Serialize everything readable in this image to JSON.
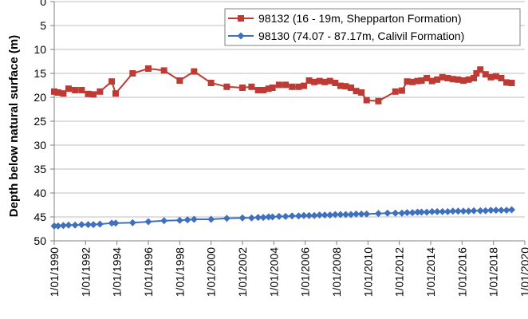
{
  "chart_data": {
    "type": "line",
    "title": "",
    "xlabel": "",
    "ylabel": "Depth below natural surface (m)",
    "y_axis_inverted": true,
    "ylim": [
      0,
      50
    ],
    "y_ticks": [
      0,
      5,
      10,
      15,
      20,
      25,
      30,
      35,
      40,
      45,
      50
    ],
    "xlim": [
      "1/01/1990",
      "1/01/2020"
    ],
    "x_ticks": [
      "1/01/1990",
      "1/01/1992",
      "1/01/1994",
      "1/01/1996",
      "1/01/1998",
      "1/01/2000",
      "1/01/2002",
      "1/01/2004",
      "1/01/2006",
      "1/01/2008",
      "1/01/2010",
      "1/01/2012",
      "1/01/2014",
      "1/01/2016",
      "1/01/2018",
      "1/01/2020"
    ],
    "grid": "horizontal",
    "legend_position": "top-right",
    "series": [
      {
        "name": "98132 (16 - 19m, Shepparton Formation)",
        "color": "#be3a34",
        "marker": "square",
        "points": [
          [
            "1/01/1990",
            18.8
          ],
          [
            "1/04/1990",
            19.0
          ],
          [
            "1/08/1990",
            19.2
          ],
          [
            "1/12/1990",
            18.2
          ],
          [
            "1/05/1991",
            18.5
          ],
          [
            "1/10/1991",
            18.5
          ],
          [
            "1/03/1992",
            19.3
          ],
          [
            "1/07/1992",
            19.4
          ],
          [
            "1/12/1992",
            18.8
          ],
          [
            "1/09/1993",
            16.7
          ],
          [
            "1/12/1993",
            19.2
          ],
          [
            "1/01/1995",
            15.0
          ],
          [
            "1/01/1996",
            14.0
          ],
          [
            "1/01/1997",
            14.4
          ],
          [
            "1/01/1998",
            16.5
          ],
          [
            "1/12/1998",
            14.6
          ],
          [
            "1/01/2000",
            17.0
          ],
          [
            "1/01/2001",
            17.8
          ],
          [
            "1/01/2002",
            18.0
          ],
          [
            "1/08/2002",
            17.8
          ],
          [
            "1/01/2003",
            18.5
          ],
          [
            "1/05/2003",
            18.5
          ],
          [
            "1/09/2003",
            18.2
          ],
          [
            "1/12/2003",
            18.0
          ],
          [
            "1/05/2004",
            17.4
          ],
          [
            "1/10/2004",
            17.4
          ],
          [
            "1/03/2005",
            17.8
          ],
          [
            "1/08/2005",
            17.8
          ],
          [
            "1/12/2005",
            17.6
          ],
          [
            "1/04/2006",
            16.5
          ],
          [
            "1/08/2006",
            16.8
          ],
          [
            "1/12/2006",
            16.6
          ],
          [
            "1/04/2007",
            16.8
          ],
          [
            "1/08/2007",
            16.6
          ],
          [
            "1/12/2007",
            17.0
          ],
          [
            "1/04/2008",
            17.6
          ],
          [
            "1/08/2008",
            17.7
          ],
          [
            "1/12/2008",
            18.0
          ],
          [
            "1/04/2009",
            18.7
          ],
          [
            "1/08/2009",
            19.0
          ],
          [
            "1/12/2009",
            20.6
          ],
          [
            "1/09/2010",
            20.8
          ],
          [
            "1/10/2011",
            18.8
          ],
          [
            "1/03/2012",
            18.6
          ],
          [
            "1/07/2012",
            16.7
          ],
          [
            "1/11/2012",
            16.8
          ],
          [
            "1/03/2013",
            16.6
          ],
          [
            "1/06/2013",
            16.5
          ],
          [
            "1/10/2013",
            16.0
          ],
          [
            "1/02/2014",
            16.6
          ],
          [
            "1/06/2014",
            16.3
          ],
          [
            "1/10/2014",
            15.8
          ],
          [
            "1/02/2015",
            16.0
          ],
          [
            "1/06/2015",
            16.2
          ],
          [
            "1/10/2015",
            16.3
          ],
          [
            "1/02/2016",
            16.5
          ],
          [
            "1/06/2016",
            16.3
          ],
          [
            "1/10/2016",
            16.0
          ],
          [
            "1/12/2016",
            15.0
          ],
          [
            "1/03/2017",
            14.2
          ],
          [
            "1/07/2017",
            15.2
          ],
          [
            "1/11/2017",
            15.8
          ],
          [
            "1/03/2018",
            15.6
          ],
          [
            "1/07/2018",
            16.0
          ],
          [
            "1/11/2018",
            16.9
          ],
          [
            "1/03/2019",
            17.0
          ]
        ]
      },
      {
        "name": "98130 (74.07 - 87.17m, Calivil Formation)",
        "color": "#3f70be",
        "marker": "diamond",
        "points": [
          [
            "1/01/1990",
            46.9
          ],
          [
            "1/04/1990",
            46.9
          ],
          [
            "1/08/1990",
            46.8
          ],
          [
            "1/12/1990",
            46.7
          ],
          [
            "1/05/1991",
            46.7
          ],
          [
            "1/10/1991",
            46.6
          ],
          [
            "1/03/1992",
            46.6
          ],
          [
            "1/07/1992",
            46.6
          ],
          [
            "1/12/1992",
            46.5
          ],
          [
            "1/09/1993",
            46.3
          ],
          [
            "1/12/1993",
            46.3
          ],
          [
            "1/01/1995",
            46.2
          ],
          [
            "1/01/1996",
            46.0
          ],
          [
            "1/01/1997",
            45.8
          ],
          [
            "1/01/1998",
            45.7
          ],
          [
            "1/07/1998",
            45.6
          ],
          [
            "1/12/1998",
            45.5
          ],
          [
            "1/01/2000",
            45.5
          ],
          [
            "1/01/2001",
            45.3
          ],
          [
            "1/01/2002",
            45.2
          ],
          [
            "1/08/2002",
            45.2
          ],
          [
            "1/01/2003",
            45.1
          ],
          [
            "1/05/2003",
            45.1
          ],
          [
            "1/09/2003",
            45.0
          ],
          [
            "1/12/2003",
            45.0
          ],
          [
            "1/05/2004",
            44.9
          ],
          [
            "1/10/2004",
            44.9
          ],
          [
            "1/03/2005",
            44.8
          ],
          [
            "1/08/2005",
            44.8
          ],
          [
            "1/12/2005",
            44.7
          ],
          [
            "1/04/2006",
            44.7
          ],
          [
            "1/08/2006",
            44.7
          ],
          [
            "1/12/2006",
            44.6
          ],
          [
            "1/04/2007",
            44.6
          ],
          [
            "1/08/2007",
            44.6
          ],
          [
            "1/12/2007",
            44.5
          ],
          [
            "1/04/2008",
            44.5
          ],
          [
            "1/08/2008",
            44.5
          ],
          [
            "1/12/2008",
            44.5
          ],
          [
            "1/04/2009",
            44.4
          ],
          [
            "1/08/2009",
            44.4
          ],
          [
            "1/12/2009",
            44.4
          ],
          [
            "1/09/2010",
            44.3
          ],
          [
            "1/04/2011",
            44.2
          ],
          [
            "1/10/2011",
            44.2
          ],
          [
            "1/03/2012",
            44.2
          ],
          [
            "1/07/2012",
            44.1
          ],
          [
            "1/11/2012",
            44.1
          ],
          [
            "1/03/2013",
            44.0
          ],
          [
            "1/06/2013",
            44.0
          ],
          [
            "1/10/2013",
            44.0
          ],
          [
            "1/02/2014",
            43.9
          ],
          [
            "1/06/2014",
            43.9
          ],
          [
            "1/10/2014",
            43.9
          ],
          [
            "1/02/2015",
            43.9
          ],
          [
            "1/06/2015",
            43.8
          ],
          [
            "1/10/2015",
            43.8
          ],
          [
            "1/02/2016",
            43.8
          ],
          [
            "1/06/2016",
            43.8
          ],
          [
            "1/10/2016",
            43.7
          ],
          [
            "1/03/2017",
            43.7
          ],
          [
            "1/07/2017",
            43.7
          ],
          [
            "1/11/2017",
            43.6
          ],
          [
            "1/03/2018",
            43.6
          ],
          [
            "1/07/2018",
            43.6
          ],
          [
            "1/11/2018",
            43.6
          ],
          [
            "1/03/2019",
            43.5
          ]
        ]
      }
    ]
  }
}
